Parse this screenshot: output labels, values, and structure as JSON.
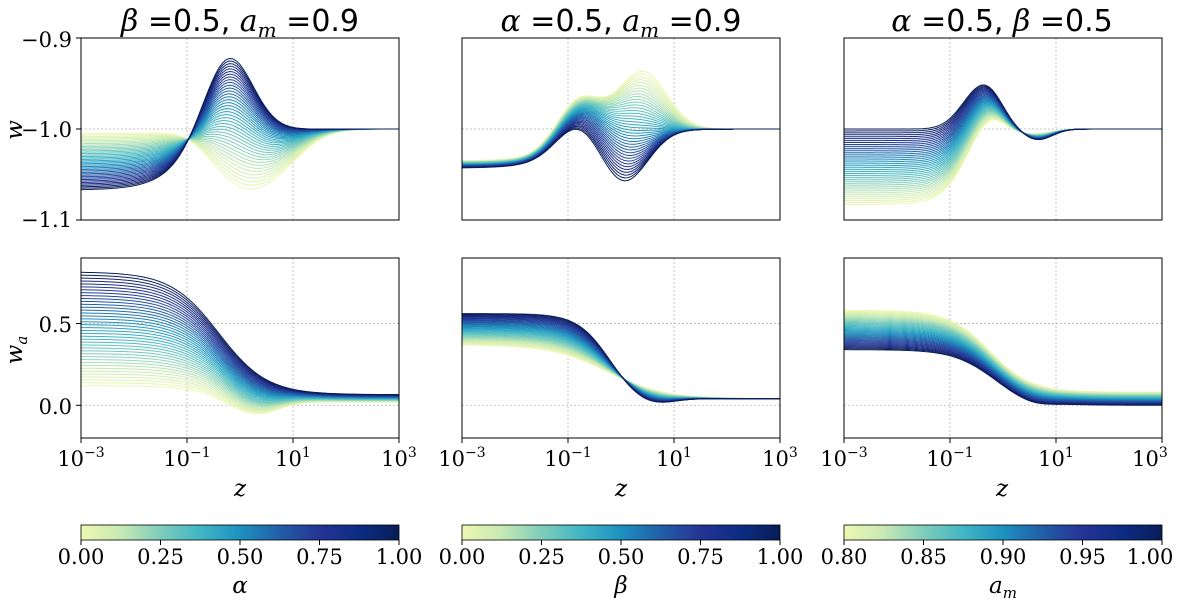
{
  "colormap": [
    "#ffffd9",
    "#edf8b1",
    "#c7e9b4",
    "#7fcdbb",
    "#41b6c4",
    "#1d91c0",
    "#225ea8",
    "#253494",
    "#081d58"
  ],
  "chart_data": [
    {
      "type": "line",
      "panel": "top-left",
      "title": {
        "s1": "β",
        "s2": " =0.5, ",
        "s3": "a",
        "s4": "m",
        "s5": " =0.9"
      },
      "ylabel": {
        "main": "w",
        "sub": ""
      },
      "xscale": "log",
      "xlim": [
        0.001,
        1000
      ],
      "ylim": [
        -1.1,
        -0.9
      ],
      "yticks": [
        "−0.9",
        "−1.0",
        "−1.1"
      ],
      "yticks_visible": true,
      "xticks_visible": false,
      "grid": true,
      "family": {
        "param": "α",
        "range": [
          0,
          1
        ],
        "curves": 40
      },
      "summary": {
        "early_min": -1.005,
        "early_max": -1.067,
        "pivot_z": 0.1,
        "peak_z": 0.6,
        "peak_max": -0.914,
        "trough_min": -1.06,
        "late": -1.0
      }
    },
    {
      "type": "line",
      "panel": "top-middle",
      "title": {
        "s1": "α",
        "s2": " =0.5, ",
        "s3": "a",
        "s4": "m",
        "s5": " =0.9"
      },
      "xscale": "log",
      "xlim": [
        0.001,
        1000
      ],
      "ylim": [
        -1.1,
        -0.9
      ],
      "yticks_visible": false,
      "xticks_visible": false,
      "grid": true,
      "family": {
        "param": "β",
        "range": [
          0,
          1
        ],
        "curves": 40
      },
      "summary": {
        "early_min": -1.035,
        "early_max": -1.043,
        "bump_z": 0.35,
        "peak_max": -0.94,
        "trough_min": -1.056,
        "late": -1.0
      }
    },
    {
      "type": "line",
      "panel": "top-right",
      "title": {
        "s1": "α",
        "s2": " =0.5, ",
        "s3": "β",
        "s4": "",
        "s5": " =0.5"
      },
      "xscale": "log",
      "xlim": [
        0.001,
        1000
      ],
      "ylim": [
        -1.1,
        -0.9
      ],
      "yticks_visible": false,
      "xticks_visible": false,
      "grid": true,
      "family": {
        "param": "a_m",
        "range": [
          0.8,
          1
        ],
        "curves": 40
      },
      "summary": {
        "early_min": -1.0,
        "early_max": -1.083,
        "peak_z": 0.35,
        "peak_max": -0.962,
        "dip": -1.012,
        "late": -1.0
      }
    },
    {
      "type": "line",
      "panel": "bottom-left",
      "ylabel": {
        "main": "w",
        "sub": "a"
      },
      "xlabel": "z",
      "xscale": "log",
      "xlim": [
        0.001,
        1000
      ],
      "ylim": [
        -0.2,
        0.9
      ],
      "yticks": [
        "0.5",
        "0.0"
      ],
      "yticks_visible": true,
      "xticks": [
        {
          "base": "10",
          "exp": "−3"
        },
        {
          "base": "10",
          "exp": "−1"
        },
        {
          "base": "10",
          "exp": "1"
        },
        {
          "base": "10",
          "exp": "3"
        }
      ],
      "xticks_visible": true,
      "grid": true,
      "family": {
        "param": "α",
        "range": [
          0,
          1
        ],
        "curves": 40
      },
      "summary": {
        "early_min": 0.12,
        "early_max": 0.815,
        "transition_z": 0.3,
        "late_min": 0.02,
        "late_max": 0.065
      }
    },
    {
      "type": "line",
      "panel": "bottom-middle",
      "xlabel": "z",
      "xscale": "log",
      "xlim": [
        0.001,
        1000
      ],
      "ylim": [
        -0.2,
        0.9
      ],
      "yticks_visible": false,
      "xticks": [
        {
          "base": "10",
          "exp": "−3"
        },
        {
          "base": "10",
          "exp": "−1"
        },
        {
          "base": "10",
          "exp": "1"
        },
        {
          "base": "10",
          "exp": "3"
        }
      ],
      "xticks_visible": true,
      "grid": true,
      "family": {
        "param": "β",
        "range": [
          0,
          1
        ],
        "curves": 40
      },
      "summary": {
        "early_min": 0.37,
        "early_max": 0.56,
        "pivot_z": 0.3,
        "pivot_y": 0.3,
        "late": 0.04
      }
    },
    {
      "type": "line",
      "panel": "bottom-right",
      "xlabel": "z",
      "xscale": "log",
      "xlim": [
        0.001,
        1000
      ],
      "ylim": [
        -0.2,
        0.9
      ],
      "yticks_visible": false,
      "xticks": [
        {
          "base": "10",
          "exp": "−3"
        },
        {
          "base": "10",
          "exp": "−1"
        },
        {
          "base": "10",
          "exp": "1"
        },
        {
          "base": "10",
          "exp": "3"
        }
      ],
      "xticks_visible": true,
      "grid": true,
      "family": {
        "param": "a_m",
        "range": [
          0.8,
          1
        ],
        "curves": 40
      },
      "summary": {
        "early_min": 0.34,
        "early_max": 0.58,
        "late_min": 0.0,
        "late_max": 0.08
      }
    }
  ],
  "colorbars": [
    {
      "label": {
        "main": "α",
        "sub": ""
      },
      "ticks": [
        "0.00",
        "0.25",
        "0.50",
        "0.75",
        "1.00"
      ]
    },
    {
      "label": {
        "main": "β",
        "sub": ""
      },
      "ticks": [
        "0.00",
        "0.25",
        "0.50",
        "0.75",
        "1.00"
      ]
    },
    {
      "label": {
        "main": "a",
        "sub": "m"
      },
      "ticks": [
        "0.80",
        "0.85",
        "0.90",
        "0.95",
        "1.00"
      ]
    }
  ]
}
